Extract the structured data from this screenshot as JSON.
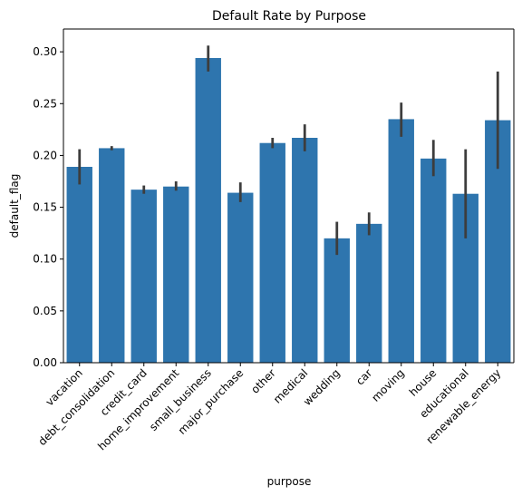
{
  "chart_data": {
    "type": "bar",
    "title": "Default Rate by Purpose",
    "xlabel": "purpose",
    "ylabel": "default_flag",
    "ylim": [
      0,
      0.322
    ],
    "yticks": [
      "0.00",
      "0.05",
      "0.10",
      "0.15",
      "0.20",
      "0.25",
      "0.30"
    ],
    "ytick_values": [
      0,
      0.05,
      0.1,
      0.15,
      0.2,
      0.25,
      0.3
    ],
    "categories": [
      "vacation",
      "debt_consolidation",
      "credit_card",
      "home_improvement",
      "small_business",
      "major_purchase",
      "other",
      "medical",
      "wedding",
      "car",
      "moving",
      "house",
      "educational",
      "renewable_energy"
    ],
    "values": [
      0.189,
      0.207,
      0.167,
      0.17,
      0.294,
      0.164,
      0.212,
      0.217,
      0.12,
      0.134,
      0.235,
      0.197,
      0.163,
      0.234
    ],
    "error_low": [
      0.172,
      0.205,
      0.163,
      0.166,
      0.281,
      0.155,
      0.207,
      0.204,
      0.104,
      0.123,
      0.218,
      0.18,
      0.12,
      0.187
    ],
    "error_high": [
      0.206,
      0.209,
      0.171,
      0.175,
      0.306,
      0.174,
      0.217,
      0.23,
      0.136,
      0.145,
      0.251,
      0.215,
      0.206,
      0.281
    ],
    "grid": false,
    "legend": "none",
    "bar_color": "#2e75ae",
    "error_color": "#3d3d3d"
  }
}
